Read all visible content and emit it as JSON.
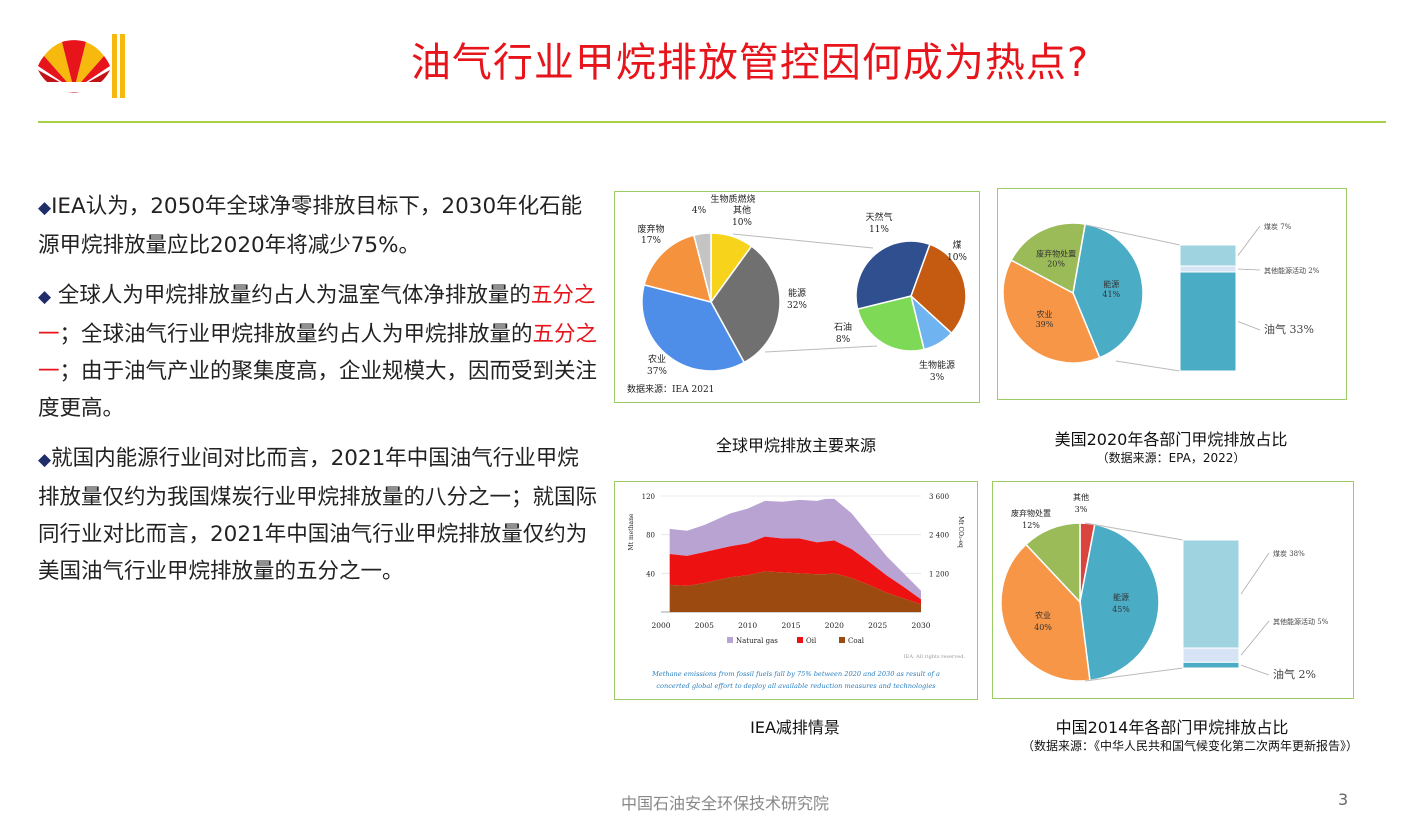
{
  "slide": {
    "title": "油气行业甲烷排放管控因何成为热点?",
    "footer": "中国石油安全环保技术研究院",
    "page_number": "3"
  },
  "bullets": [
    {
      "marker": "◆",
      "parts": [
        {
          "text": "IEA认为，2050年全球净零排放目标下，2030年化石能源甲烷排放量应比2020年将减少75%。",
          "highlight": false
        }
      ]
    },
    {
      "marker": "◆",
      "parts": [
        {
          "text": " 全球人为甲烷排放量约占人为温室气体净排放量的",
          "highlight": false
        },
        {
          "text": "五分之一",
          "highlight": true
        },
        {
          "text": "；全球油气行业甲烷排放量约占人为甲烷排放量的",
          "highlight": false
        },
        {
          "text": "五分之一",
          "highlight": true
        },
        {
          "text": "；由于油气产业的聚集度高，企业规模大，因而受到关注度更高。",
          "highlight": false
        }
      ]
    },
    {
      "marker": "◆",
      "parts": [
        {
          "text": "就国内能源行业间对比而言，2021年中国油气行业甲烷排放量仅约为我国煤炭行业甲烷排放量的八分之一；就国际同行业对比而言，2021年中国油气行业甲烷排放量仅约为美国油气行业甲烷排放量的五分之一。",
          "highlight": false
        }
      ]
    }
  ],
  "colors": {
    "title_red": "#e8141b",
    "rule_green": "#a8d14a",
    "panel_border": "#9ccc65"
  },
  "chart_data": [
    {
      "type": "pie",
      "caption": "全球甲烷排放主要来源",
      "source_note": "数据来源：IEA 2021",
      "main_pie": {
        "slices": [
          {
            "label": "能源",
            "value": 32,
            "value_text": "32%",
            "color": "#707070"
          },
          {
            "label": "农业",
            "value": 37,
            "value_text": "37%",
            "color": "#4e8ee8"
          },
          {
            "label": "废弃物",
            "value": 17,
            "value_text": "17%",
            "color": "#f5923e"
          },
          {
            "label": "生物质燃烧",
            "value": 4,
            "value_text": "4%",
            "color": "#c4c4c4"
          },
          {
            "label": "其他",
            "value": 10,
            "value_text": "10%",
            "color": "#f7d31c"
          }
        ]
      },
      "detail_pie": {
        "slices": [
          {
            "label": "天然气",
            "value": 11,
            "value_text": "11%",
            "color": "#2f4f8f"
          },
          {
            "label": "煤",
            "value": 10,
            "value_text": "10%",
            "color": "#c55a11"
          },
          {
            "label": "生物能源",
            "value": 3,
            "value_text": "3%",
            "color": "#6fb3f0"
          },
          {
            "label": "石油",
            "value": 8,
            "value_text": "8%",
            "color": "#7ed957"
          }
        ]
      }
    },
    {
      "type": "pie",
      "caption": "美国2020年各部门甲烷排放占比",
      "source_note": "（数据来源：EPA，2022）",
      "main_pie": {
        "slices": [
          {
            "label": "能源",
            "value": 41,
            "value_text": "41%",
            "color": "#4bacc6"
          },
          {
            "label": "农业",
            "value": 39,
            "value_text": "39%",
            "color": "#f79646"
          },
          {
            "label": "废弃物处置",
            "value": 20,
            "value_text": "20%",
            "color": "#9bbb59"
          }
        ]
      },
      "breakdown_bar": [
        {
          "label": "煤炭",
          "value": 7,
          "value_text": "7%",
          "color": "#9fd3e0"
        },
        {
          "label": "其他能源活动",
          "value": 2,
          "value_text": "2%",
          "color": "#d6e4f5"
        },
        {
          "label": "油气",
          "value": 33,
          "value_text": "33%",
          "color": "#4bacc6"
        }
      ]
    },
    {
      "type": "area",
      "caption": "IEA减排情景",
      "ylabel_left": "Mt methane",
      "ylabel_right": "Mt CO₂-eq",
      "x": [
        2000,
        2005,
        2010,
        2015,
        2020,
        2025,
        2030
      ],
      "xlim": [
        2000,
        2030
      ],
      "ylim": [
        0,
        120
      ],
      "yticks_left": [
        "40",
        "80",
        "120"
      ],
      "yticks_right": [
        "1 200",
        "2 400",
        "3 600"
      ],
      "series": [
        {
          "name": "Natural gas",
          "color": "#b9a3d3",
          "x": [
            2001,
            2003,
            2005,
            2008,
            2010,
            2012,
            2014,
            2016,
            2018,
            2019,
            2020,
            2022,
            2024,
            2026,
            2028,
            2030
          ],
          "values": [
            26,
            26,
            28,
            34,
            36,
            37,
            38,
            40,
            43,
            44,
            43,
            37,
            28,
            20,
            14,
            9
          ]
        },
        {
          "name": "Oil",
          "color": "#ee1111",
          "x": [
            2001,
            2003,
            2005,
            2008,
            2010,
            2012,
            2014,
            2016,
            2018,
            2019,
            2020,
            2022,
            2024,
            2026,
            2028,
            2030
          ],
          "values": [
            32,
            31,
            32,
            32,
            33,
            36,
            35,
            36,
            33,
            34,
            34,
            30,
            24,
            18,
            12,
            5
          ]
        },
        {
          "name": "Coal",
          "color": "#9c4a10",
          "x": [
            2001,
            2003,
            2005,
            2008,
            2010,
            2012,
            2014,
            2016,
            2018,
            2019,
            2020,
            2022,
            2024,
            2026,
            2028,
            2030
          ],
          "values": [
            28,
            27,
            30,
            36,
            38,
            42,
            41,
            40,
            39,
            39,
            40,
            35,
            28,
            20,
            14,
            8
          ]
        }
      ],
      "credit": "IEA. All rights reserved.",
      "annotation": "Methane emissions from fossil fuels fall by 75% between 2020 and 2030 as result of a concerted global effort to deploy all available reduction measures and technologies"
    },
    {
      "type": "pie",
      "caption": "中国2014年各部门甲烷排放占比",
      "source_note": "（数据来源：《中华人民共和国气候变化第二次两年更新报告》）",
      "main_pie": {
        "slices": [
          {
            "label": "其他",
            "value": 3,
            "value_text": "3%",
            "color": "#d9443f"
          },
          {
            "label": "能源",
            "value": 45,
            "value_text": "45%",
            "color": "#4bacc6"
          },
          {
            "label": "农业",
            "value": 40,
            "value_text": "40%",
            "color": "#f79646"
          },
          {
            "label": "废弃物处置",
            "value": 12,
            "value_text": "12%",
            "color": "#9bbb59"
          }
        ]
      },
      "breakdown_bar": [
        {
          "label": "煤炭",
          "value": 38,
          "value_text": "38%",
          "color": "#9fd3e0"
        },
        {
          "label": "其他能源活动",
          "value": 5,
          "value_text": "5%",
          "color": "#d6e4f5"
        },
        {
          "label": "油气",
          "value": 2,
          "value_text": "2%",
          "color": "#4bacc6"
        }
      ]
    }
  ]
}
